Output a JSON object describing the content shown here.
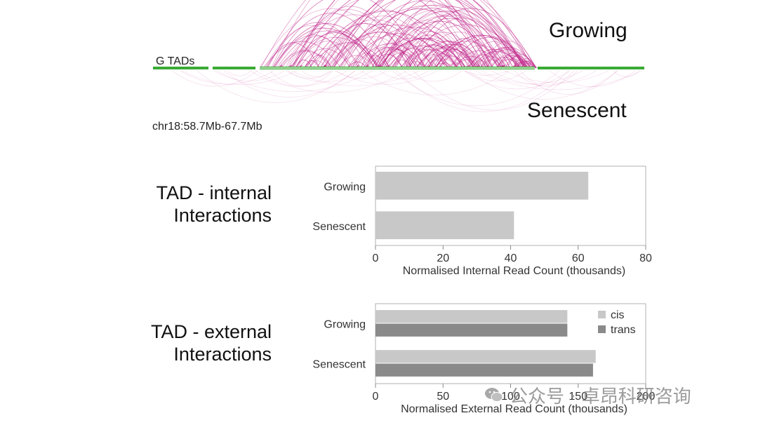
{
  "hic_panel": {
    "top_label": "Growing",
    "bottom_label": "Senescent",
    "track_label": "G TADs",
    "region": "chr18:58.7Mb-67.7Mb",
    "arc_color": "#c0268a",
    "tad_color": "#3aaa35"
  },
  "chart_data": [
    {
      "type": "bar",
      "orientation": "horizontal",
      "row_title": [
        "TAD - internal",
        "Interactions"
      ],
      "categories": [
        "Growing",
        "Senescent"
      ],
      "series": [
        {
          "values": [
            63,
            41
          ],
          "color": "#c8c8c8"
        }
      ],
      "xlabel": "Normalised Internal Read Count (thousands)",
      "xlim": [
        0,
        80
      ],
      "xticks": [
        0,
        20,
        40,
        60,
        80
      ],
      "grid": false
    },
    {
      "type": "bar",
      "orientation": "horizontal",
      "row_title": [
        "TAD - external",
        "Interactions"
      ],
      "categories": [
        "Growing",
        "Senescent"
      ],
      "series": [
        {
          "name": "cis",
          "values": [
            142,
            163
          ],
          "color": "#c8c8c8"
        },
        {
          "name": "trans",
          "values": [
            142,
            161
          ],
          "color": "#8a8a8a"
        }
      ],
      "xlabel": "Normalised External Read Count (thousands)",
      "xlim": [
        0,
        200
      ],
      "xticks": [
        0,
        50,
        100,
        150,
        200
      ],
      "legend": "top-right",
      "grid": false
    }
  ],
  "watermark": {
    "text": "公众号 · 卓昂科研咨询",
    "icon": "wechat-icon"
  }
}
